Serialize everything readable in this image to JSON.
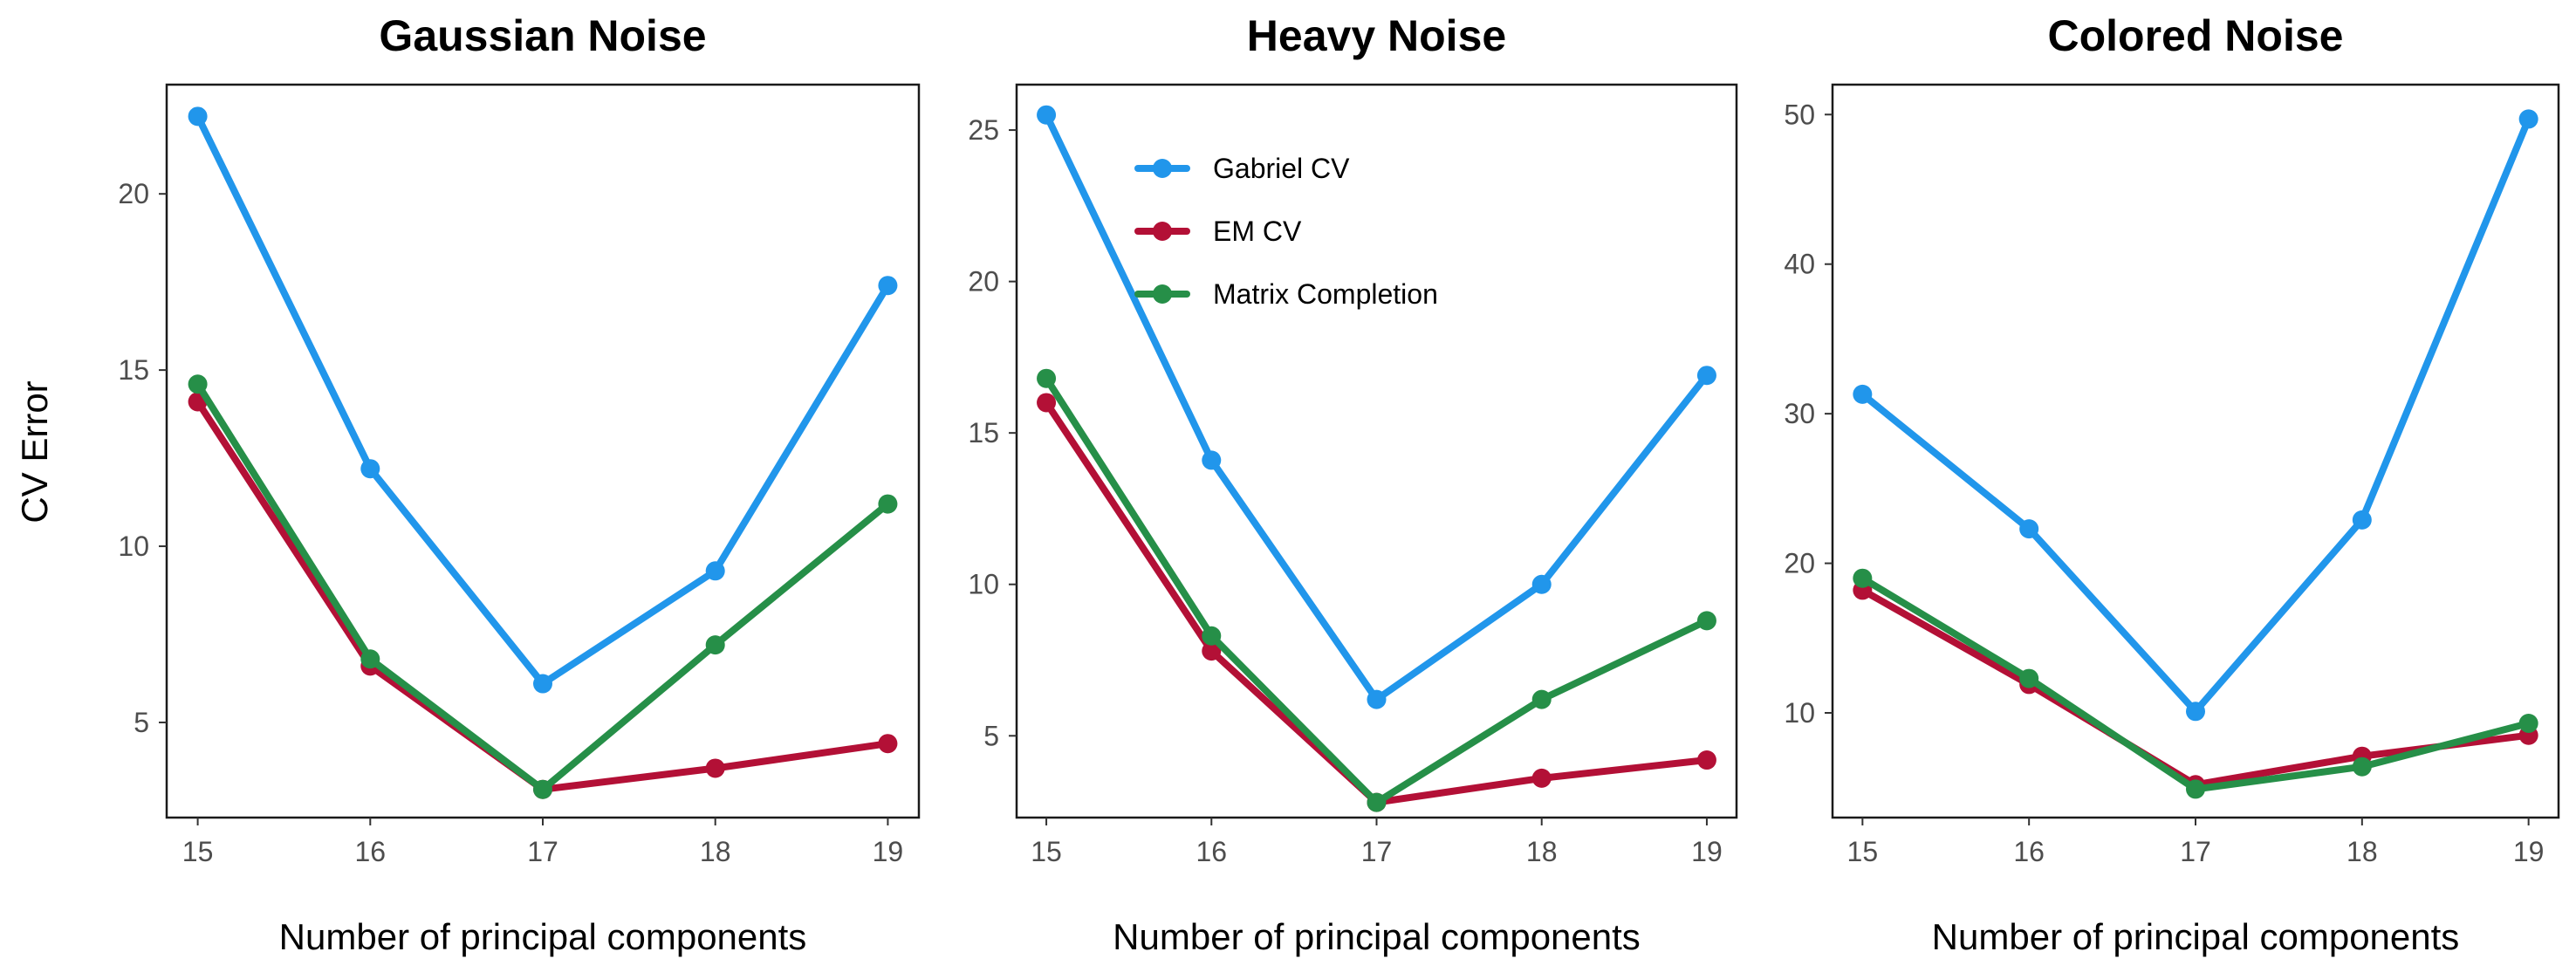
{
  "figure": {
    "ylabel": "CV Error"
  },
  "legend": {
    "position": "top-center-of-middle-panel",
    "entries": [
      {
        "name": "Gabriel CV",
        "color": "#2196EB"
      },
      {
        "name": "EM CV",
        "color": "#B31036"
      },
      {
        "name": "Matrix Completion",
        "color": "#268F48"
      }
    ]
  },
  "chart_data": [
    {
      "type": "line",
      "title": "Gaussian Noise",
      "xlabel": "Number of principal components",
      "ylabel": "CV Error",
      "x": [
        15,
        16,
        17,
        18,
        19
      ],
      "xlim": [
        14.82,
        19.18
      ],
      "ylim": [
        2.3,
        23.1
      ],
      "yticks": [
        5,
        10,
        15,
        20
      ],
      "series": [
        {
          "name": "Gabriel CV",
          "color": "#2196EB",
          "values": [
            22.2,
            12.2,
            6.1,
            9.3,
            17.4
          ]
        },
        {
          "name": "EM CV",
          "color": "#B31036",
          "values": [
            14.1,
            6.6,
            3.1,
            3.7,
            4.4
          ]
        },
        {
          "name": "Matrix Completion",
          "color": "#268F48",
          "values": [
            14.6,
            6.8,
            3.1,
            7.2,
            11.2
          ]
        }
      ]
    },
    {
      "type": "line",
      "title": "Heavy Noise",
      "xlabel": "Number of principal components",
      "ylabel": "",
      "x": [
        15,
        16,
        17,
        18,
        19
      ],
      "xlim": [
        14.82,
        19.18
      ],
      "ylim": [
        2.3,
        26.5
      ],
      "yticks": [
        5,
        10,
        15,
        20,
        25
      ],
      "series": [
        {
          "name": "Gabriel CV",
          "color": "#2196EB",
          "values": [
            25.5,
            14.1,
            6.2,
            10.0,
            16.9
          ]
        },
        {
          "name": "EM CV",
          "color": "#B31036",
          "values": [
            16.0,
            7.8,
            2.8,
            3.6,
            4.2
          ]
        },
        {
          "name": "Matrix Completion",
          "color": "#268F48",
          "values": [
            16.8,
            8.3,
            2.8,
            6.2,
            8.8
          ]
        }
      ]
    },
    {
      "type": "line",
      "title": "Colored Noise",
      "xlabel": "Number of principal components",
      "ylabel": "",
      "x": [
        15,
        16,
        17,
        18,
        19
      ],
      "xlim": [
        14.82,
        19.18
      ],
      "ylim": [
        3.0,
        52.0
      ],
      "yticks": [
        10,
        20,
        30,
        40,
        50
      ],
      "series": [
        {
          "name": "Gabriel CV",
          "color": "#2196EB",
          "values": [
            31.3,
            22.3,
            10.1,
            22.9,
            49.7
          ]
        },
        {
          "name": "EM CV",
          "color": "#B31036",
          "values": [
            18.2,
            11.9,
            5.2,
            7.1,
            8.5
          ]
        },
        {
          "name": "Matrix Completion",
          "color": "#268F48",
          "values": [
            19.0,
            12.3,
            4.9,
            6.4,
            9.3
          ]
        }
      ]
    }
  ]
}
